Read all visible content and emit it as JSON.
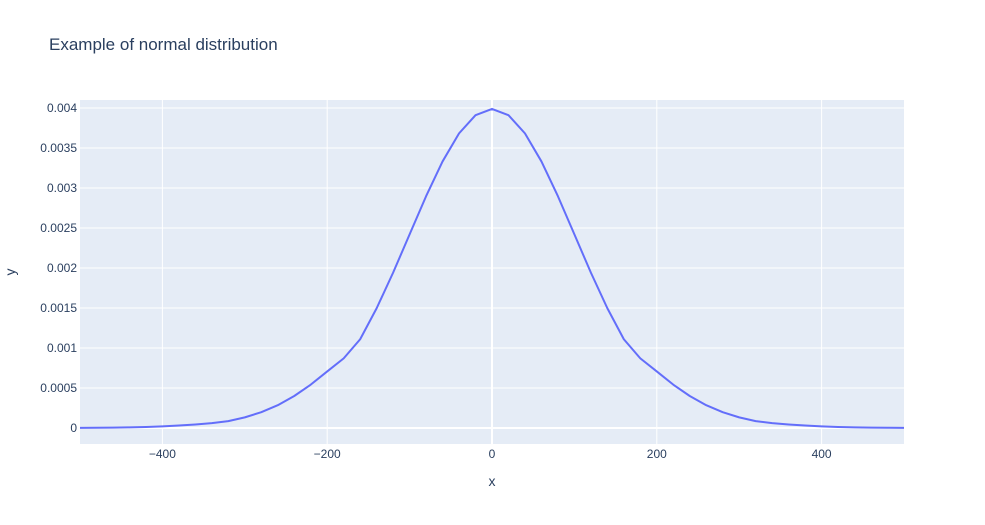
{
  "chart_data": {
    "type": "line",
    "title": "Example of normal distribution",
    "xlabel": "x",
    "ylabel": "y",
    "xlim": [
      -500,
      500
    ],
    "ylim": [
      -0.0002,
      0.0041
    ],
    "x_ticks": [
      -400,
      -200,
      0,
      200,
      400
    ],
    "x_tick_labels": [
      "−400",
      "−200",
      "0",
      "200",
      "400"
    ],
    "y_ticks": [
      0,
      0.0005,
      0.001,
      0.0015,
      0.002,
      0.0025,
      0.003,
      0.0035,
      0.004
    ],
    "y_tick_labels": [
      "0",
      "0.0005",
      "0.001",
      "0.0015",
      "0.002",
      "0.0025",
      "0.003",
      "0.0035",
      "0.004"
    ],
    "grid": true,
    "legend": false,
    "colors": {
      "plot_bg": "#E5ECF6",
      "grid": "#ffffff",
      "line": "#636efa",
      "text": "#2a3f5f"
    },
    "series": [
      {
        "x": [
          -500,
          -480,
          -460,
          -440,
          -420,
          -400,
          -380,
          -360,
          -340,
          -320,
          -300,
          -280,
          -260,
          -240,
          -220,
          -200,
          -180,
          -160,
          -140,
          -120,
          -100,
          -80,
          -60,
          -40,
          -20,
          0,
          20,
          40,
          60,
          80,
          100,
          120,
          140,
          160,
          180,
          200,
          220,
          240,
          260,
          280,
          300,
          320,
          340,
          360,
          380,
          400,
          420,
          440,
          460,
          480,
          500
        ],
        "y": [
          1.5e-06,
          2.7e-06,
          4.7e-06,
          7.9e-06,
          1.29e-05,
          2.03e-05,
          3.06e-05,
          4.43e-05,
          6.13e-05,
          8.55e-05,
          0.000133,
          0.000198,
          0.000285,
          0.0004,
          0.000542,
          0.000707,
          0.00087,
          0.001109,
          0.001497,
          0.001942,
          0.00242,
          0.002897,
          0.003332,
          0.003683,
          0.00391,
          0.003989,
          0.00391,
          0.003683,
          0.003332,
          0.002897,
          0.00242,
          0.001942,
          0.001497,
          0.001109,
          0.00087,
          0.000707,
          0.000542,
          0.0004,
          0.000285,
          0.000198,
          0.000133,
          8.55e-05,
          6.13e-05,
          4.43e-05,
          3.06e-05,
          2.03e-05,
          1.29e-05,
          7.9e-06,
          4.7e-06,
          2.7e-06,
          1.5e-06
        ]
      }
    ]
  }
}
